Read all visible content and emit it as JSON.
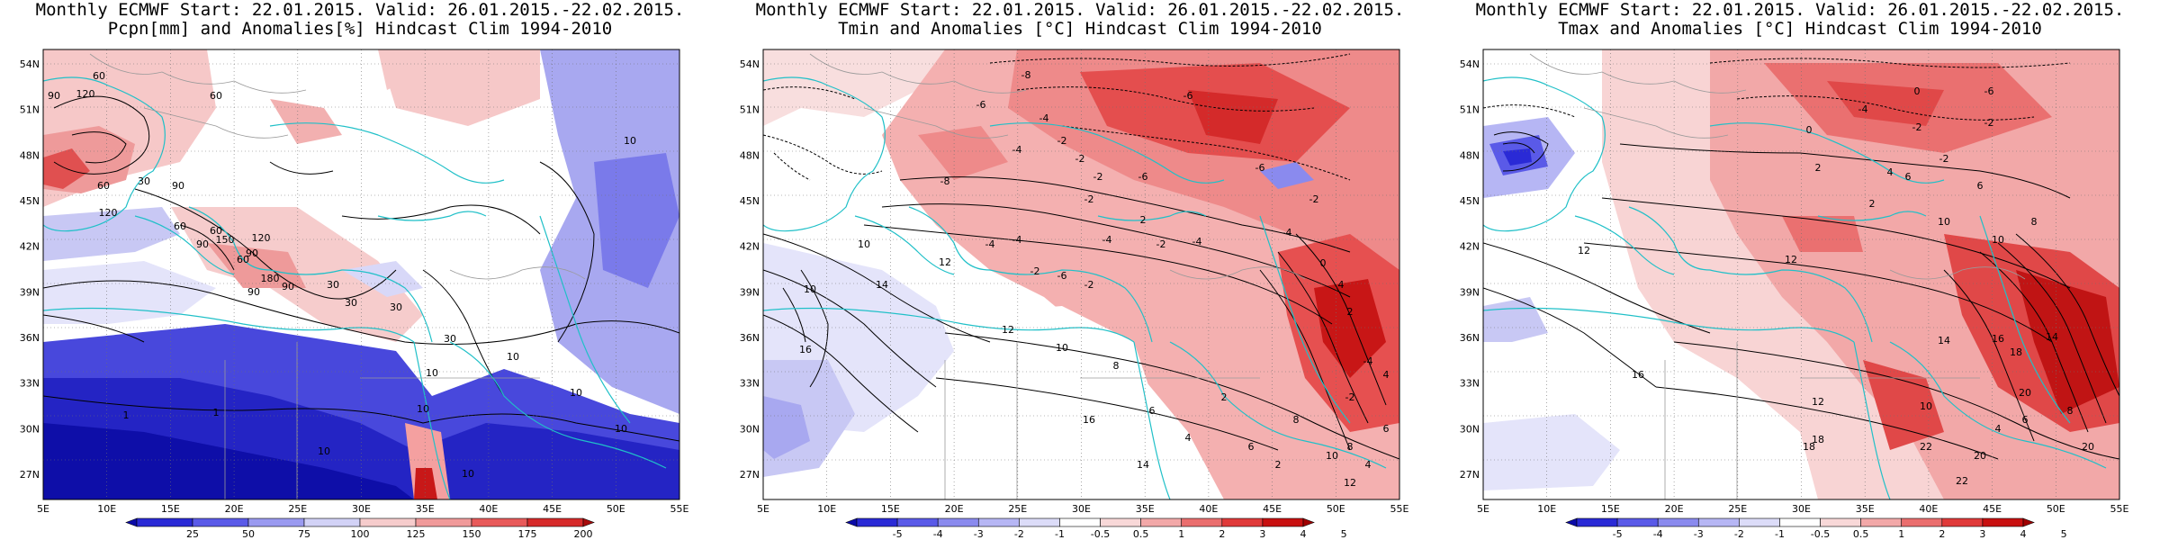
{
  "panels": [
    {
      "title_line1": "Monthly ECMWF Start: 22.01.2015. Valid: 26.01.2015.-22.02.2015.",
      "title_line2": "Pcpn[mm] and Anomalies[%] Hindcast Clim 1994-2010",
      "colorbar_labels": [
        "25",
        "50",
        "75",
        "100",
        "125",
        "150",
        "175",
        "200"
      ],
      "colorbar_colors": [
        "#0b0ba8",
        "#2a2ad6",
        "#5a5ae8",
        "#9a9af0",
        "#d2d2f6",
        "#f6cccc",
        "#f09a9a",
        "#e85a5a",
        "#d62a2a",
        "#a80b0b"
      ],
      "contour_labels": [
        "60",
        "60",
        "90",
        "120",
        "120",
        "60",
        "90",
        "60",
        "150",
        "120",
        "90",
        "60",
        "180",
        "90",
        "90",
        "30",
        "30",
        "30",
        "30",
        "10",
        "10",
        "10",
        "1",
        "1",
        "10",
        "10",
        "10",
        "10",
        "10",
        "60",
        "30",
        "90"
      ]
    },
    {
      "title_line1": "Monthly ECMWF Start: 22.01.2015. Valid: 26.01.2015.-22.02.2015.",
      "title_line2": "Tmin and Anomalies [°C] Hindcast Clim 1994-2010",
      "colorbar_labels": [
        "-5",
        "-4",
        "-3",
        "-2",
        "-1",
        "-0.5",
        "0.5",
        "1",
        "2",
        "3",
        "4",
        "5"
      ],
      "colorbar_colors": [
        "#0b0ba8",
        "#2a2ad6",
        "#5a5ae8",
        "#8a8aee",
        "#b6b6f4",
        "#dcdcf8",
        "#ffffff",
        "#f8d8d8",
        "#f2a8a8",
        "#ea6e6e",
        "#e03a3a",
        "#c81010",
        "#a00000"
      ],
      "contour_labels": [
        "-8",
        "-6",
        "-4",
        "-2",
        "-2",
        "-6",
        "-6",
        "-4",
        "-2",
        "-2",
        "-4",
        "-4",
        "-2",
        "-6",
        "-2",
        "-4",
        "-8",
        "2",
        "-2",
        "-4",
        "-6",
        "-4",
        "-2",
        "0",
        "4",
        "2",
        "10",
        "10",
        "14",
        "16",
        "12",
        "12",
        "10",
        "8",
        "6",
        "4",
        "2",
        "6",
        "8",
        "10",
        "12",
        "2",
        "14",
        "16",
        "-4",
        "-2",
        "4",
        "8",
        "6",
        "4"
      ]
    },
    {
      "title_line1": "Monthly ECMWF Start: 22.01.2015. Valid: 26.01.2015.-22.02.2015.",
      "title_line2": "Tmax and Anomalies [°C] Hindcast Clim 1994-2010",
      "colorbar_labels": [
        "-5",
        "-4",
        "-3",
        "-2",
        "-1",
        "-0.5",
        "0.5",
        "1",
        "2",
        "3",
        "4",
        "5"
      ],
      "colorbar_colors": [
        "#0b0ba8",
        "#2a2ad6",
        "#5a5ae8",
        "#8a8aee",
        "#b6b6f4",
        "#dcdcf8",
        "#ffffff",
        "#f8d8d8",
        "#f2a8a8",
        "#ea6e6e",
        "#e03a3a",
        "#c81010",
        "#a00000"
      ],
      "contour_labels": [
        "-6",
        "-4",
        "-2",
        "-2",
        "0",
        "0",
        "2",
        "4",
        "6",
        "-2",
        "2",
        "6",
        "8",
        "10",
        "10",
        "12",
        "12",
        "14",
        "16",
        "16",
        "18",
        "18",
        "20",
        "20",
        "22",
        "22",
        "14",
        "18",
        "10",
        "12",
        "20",
        "8",
        "6",
        "4"
      ]
    }
  ],
  "map_axes": {
    "lat_labels": [
      "54N",
      "51N",
      "48N",
      "45N",
      "42N",
      "39N",
      "36N",
      "33N",
      "30N",
      "27N"
    ],
    "lon_labels": [
      "5E",
      "10E",
      "15E",
      "20E",
      "25E",
      "30E",
      "35E",
      "40E",
      "45E",
      "50E",
      "55E"
    ]
  }
}
